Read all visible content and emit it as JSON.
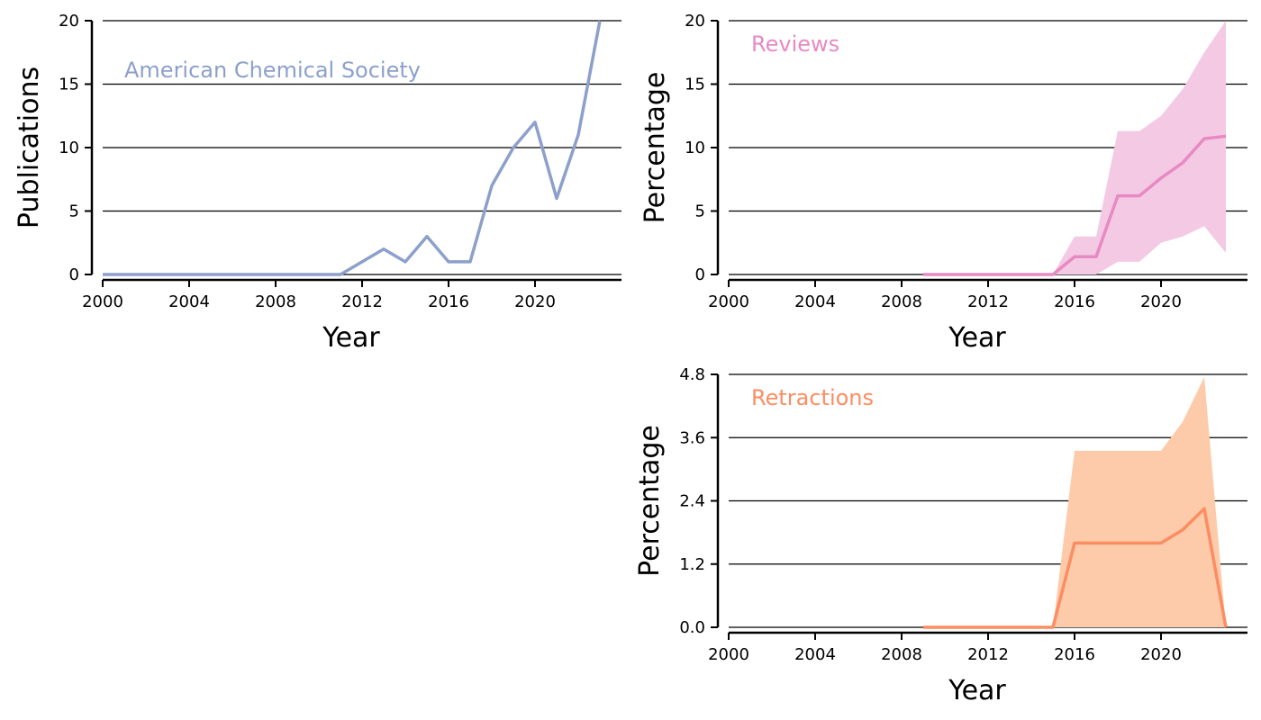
{
  "colors": {
    "acs": "#8DA0CB",
    "reviews_line": "#E78AC3",
    "reviews_band": "#F4C9E3",
    "retractions_line": "#FC8D62",
    "retractions_band": "#FDCBA9",
    "grid": "#000000"
  },
  "chart_data": [
    {
      "type": "line",
      "panel": "top-left",
      "label": "American Chemical Society",
      "label_color": "#8DA0CB",
      "xlabel": "Year",
      "ylabel": "Publications",
      "xlim": [
        2000,
        2024
      ],
      "ylim": [
        0,
        20
      ],
      "x_ticks": [
        2000,
        2004,
        2008,
        2012,
        2016,
        2020
      ],
      "y_ticks": [
        0,
        5,
        10,
        15,
        20
      ],
      "y_tick_labels": [
        "0",
        "5",
        "10",
        "15",
        "20"
      ],
      "grid": "horizontal",
      "series": [
        {
          "color": "#8DA0CB",
          "x": [
            2000,
            2001,
            2002,
            2003,
            2004,
            2005,
            2006,
            2007,
            2008,
            2009,
            2010,
            2011,
            2012,
            2013,
            2014,
            2015,
            2016,
            2017,
            2018,
            2019,
            2020,
            2021,
            2022,
            2023
          ],
          "y": [
            0,
            0,
            0,
            0,
            0,
            0,
            0,
            0,
            0,
            0,
            0,
            0,
            1,
            2,
            1,
            3,
            1,
            1,
            7,
            10,
            12,
            6,
            11,
            20
          ]
        }
      ]
    },
    {
      "type": "area",
      "panel": "top-right",
      "label": "Reviews",
      "label_color": "#E78AC3",
      "xlabel": "Year",
      "ylabel": "Percentage",
      "xlim": [
        2000,
        2024
      ],
      "ylim": [
        0,
        20
      ],
      "x_ticks": [
        2000,
        2004,
        2008,
        2012,
        2016,
        2020
      ],
      "y_ticks": [
        0,
        5,
        10,
        15,
        20
      ],
      "y_tick_labels": [
        "0",
        "5",
        "10",
        "15",
        "20"
      ],
      "grid": "horizontal",
      "series": [
        {
          "color": "#E78AC3",
          "band_color": "#F4C9E3",
          "x": [
            2009,
            2010,
            2011,
            2012,
            2013,
            2014,
            2015,
            2016,
            2017,
            2018,
            2019,
            2020,
            2021,
            2022,
            2023
          ],
          "y": [
            0,
            0,
            0,
            0,
            0,
            0,
            0,
            1.4,
            1.4,
            6.2,
            6.2,
            7.6,
            8.8,
            10.7,
            10.9
          ],
          "lower": [
            0,
            0,
            0,
            0,
            0,
            0,
            0,
            0,
            0,
            1.0,
            1.0,
            2.5,
            3.0,
            3.8,
            1.7
          ],
          "upper": [
            0,
            0,
            0,
            0,
            0,
            0,
            0,
            3.0,
            3.0,
            11.3,
            11.3,
            12.5,
            14.6,
            17.5,
            20.0
          ]
        }
      ]
    },
    {
      "type": "area",
      "panel": "bottom-right",
      "label": "Retractions",
      "label_color": "#FC8D62",
      "xlabel": "Year",
      "ylabel": "Percentage",
      "xlim": [
        2000,
        2024
      ],
      "ylim": [
        0,
        4.8
      ],
      "x_ticks": [
        2000,
        2004,
        2008,
        2012,
        2016,
        2020
      ],
      "y_ticks": [
        0,
        1.2,
        2.4,
        3.6,
        4.8
      ],
      "y_tick_labels": [
        "0.0",
        "1.2",
        "2.4",
        "3.6",
        "4.8"
      ],
      "grid": "horizontal",
      "series": [
        {
          "color": "#FC8D62",
          "band_color": "#FDCBA9",
          "x": [
            2009,
            2010,
            2011,
            2012,
            2013,
            2014,
            2015,
            2016,
            2017,
            2018,
            2019,
            2020,
            2021,
            2022,
            2023
          ],
          "y": [
            0,
            0,
            0,
            0,
            0,
            0,
            0,
            1.6,
            1.6,
            1.6,
            1.6,
            1.6,
            1.85,
            2.25,
            0
          ],
          "lower": [
            0,
            0,
            0,
            0,
            0,
            0,
            0,
            0,
            0,
            0,
            0,
            0,
            0,
            0,
            0
          ],
          "upper": [
            0,
            0,
            0,
            0,
            0,
            0,
            0,
            3.35,
            3.35,
            3.35,
            3.35,
            3.35,
            3.9,
            4.75,
            0
          ]
        }
      ]
    }
  ]
}
